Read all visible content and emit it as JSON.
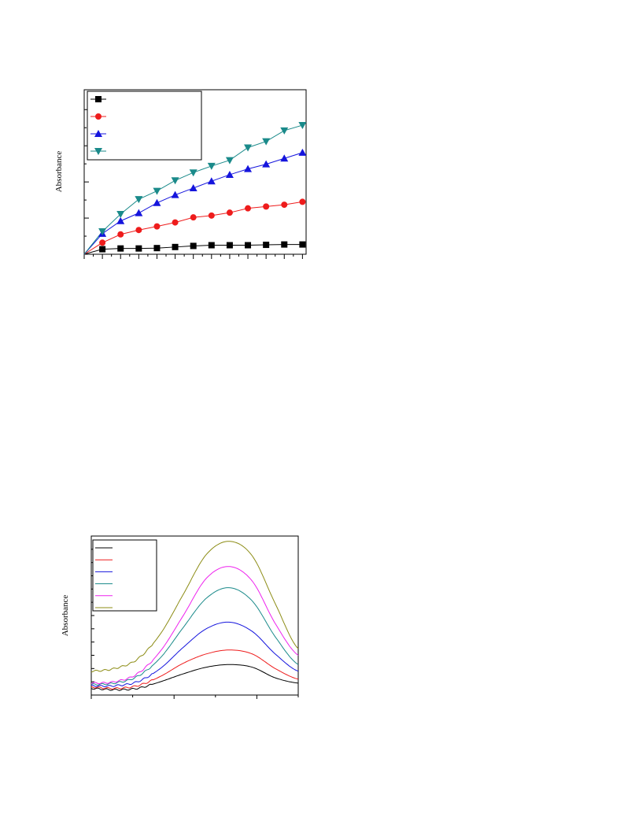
{
  "chart_data": [
    {
      "type": "line",
      "ylabel": "Absorbance",
      "xlim": [
        0,
        12.2
      ],
      "ylim": [
        0,
        4.55
      ],
      "x": [
        0,
        1,
        2,
        3,
        4,
        5,
        6,
        7,
        8,
        9,
        10,
        11,
        12
      ],
      "legend_position": "top-left",
      "grid": false,
      "series": [
        {
          "color": "#000000",
          "marker": "square",
          "values": [
            0,
            0.14,
            0.16,
            0.16,
            0.17,
            0.2,
            0.23,
            0.25,
            0.25,
            0.25,
            0.26,
            0.27,
            0.27
          ]
        },
        {
          "color": "#ee1c1c",
          "marker": "circle",
          "values": [
            0,
            0.32,
            0.55,
            0.67,
            0.77,
            0.88,
            1.02,
            1.07,
            1.15,
            1.27,
            1.32,
            1.37,
            1.45
          ]
        },
        {
          "color": "#1515dd",
          "marker": "triangle-up",
          "values": [
            0,
            0.57,
            0.92,
            1.14,
            1.42,
            1.64,
            1.83,
            2.02,
            2.2,
            2.36,
            2.49,
            2.65,
            2.81
          ]
        },
        {
          "color": "#1a8a8a",
          "marker": "triangle-down",
          "values": [
            0,
            0.63,
            1.11,
            1.52,
            1.75,
            2.04,
            2.26,
            2.44,
            2.6,
            2.95,
            3.12,
            3.42,
            3.57
          ]
        }
      ]
    },
    {
      "type": "line",
      "ylabel": "Absorbance",
      "xlim": [
        0,
        100
      ],
      "ylim": [
        0,
        1.2
      ],
      "legend_position": "top-left",
      "grid": false,
      "series": [
        {
          "color": "#000000",
          "values": [
            0.05,
            0.04,
            0.05,
            0.1,
            0.16,
            0.21,
            0.23,
            0.21,
            0.13,
            0.09
          ]
        },
        {
          "color": "#ee1c1c",
          "values": [
            0.06,
            0.05,
            0.07,
            0.14,
            0.24,
            0.31,
            0.34,
            0.31,
            0.2,
            0.12
          ]
        },
        {
          "color": "#1515dd",
          "values": [
            0.07,
            0.07,
            0.1,
            0.2,
            0.36,
            0.5,
            0.55,
            0.48,
            0.31,
            0.18
          ]
        },
        {
          "color": "#1a8a8a",
          "values": [
            0.08,
            0.09,
            0.14,
            0.28,
            0.51,
            0.73,
            0.81,
            0.71,
            0.44,
            0.23
          ]
        },
        {
          "color": "#ee22ee",
          "values": [
            0.09,
            0.1,
            0.16,
            0.33,
            0.6,
            0.88,
            0.97,
            0.86,
            0.54,
            0.3
          ]
        },
        {
          "color": "#8c8c14",
          "values": [
            0.18,
            0.2,
            0.27,
            0.46,
            0.76,
            1.06,
            1.16,
            1.05,
            0.69,
            0.35
          ]
        }
      ]
    }
  ]
}
